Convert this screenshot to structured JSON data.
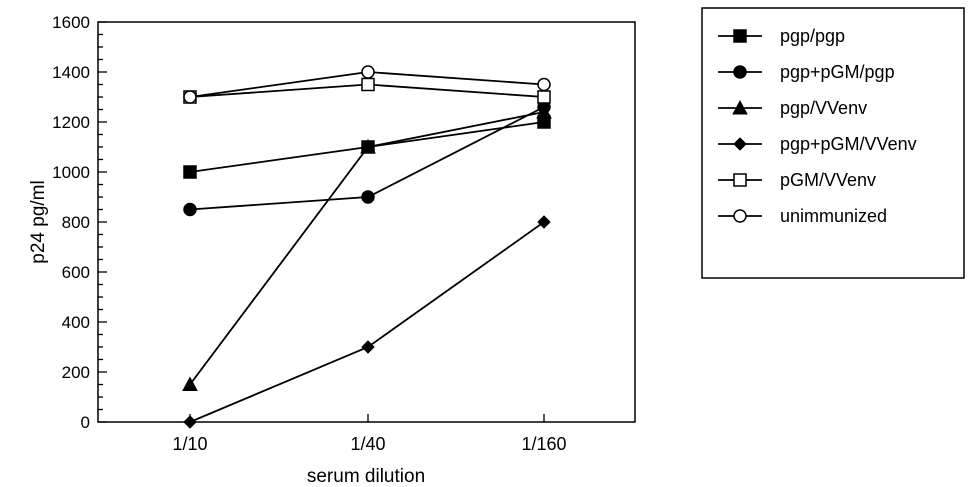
{
  "chart_data": {
    "type": "line",
    "title": "",
    "xlabel": "serum dilution",
    "ylabel": "p24  pg/ml",
    "categories": [
      "1/10",
      "1/40",
      "1/160"
    ],
    "ylim": [
      0,
      1600
    ],
    "yticks": [
      0,
      200,
      400,
      600,
      800,
      1000,
      1200,
      1400,
      1600
    ],
    "grid": false,
    "legend_position": "right",
    "series": [
      {
        "name": "pgp/pgp",
        "marker": "square-filled",
        "values": [
          1000,
          1100,
          1200
        ]
      },
      {
        "name": "pgp+pGM/pgp",
        "marker": "circle-filled",
        "values": [
          850,
          900,
          1260
        ]
      },
      {
        "name": "pgp/VVenv",
        "marker": "triangle-filled",
        "values": [
          150,
          1100,
          1240
        ]
      },
      {
        "name": "pgp+pGM/VVenv",
        "marker": "diamond-filled",
        "values": [
          0,
          300,
          800
        ]
      },
      {
        "name": "pGM/VVenv",
        "marker": "square-open",
        "values": [
          1300,
          1350,
          1300
        ]
      },
      {
        "name": "unimmunized",
        "marker": "circle-open",
        "values": [
          1300,
          1400,
          1350
        ]
      }
    ]
  }
}
